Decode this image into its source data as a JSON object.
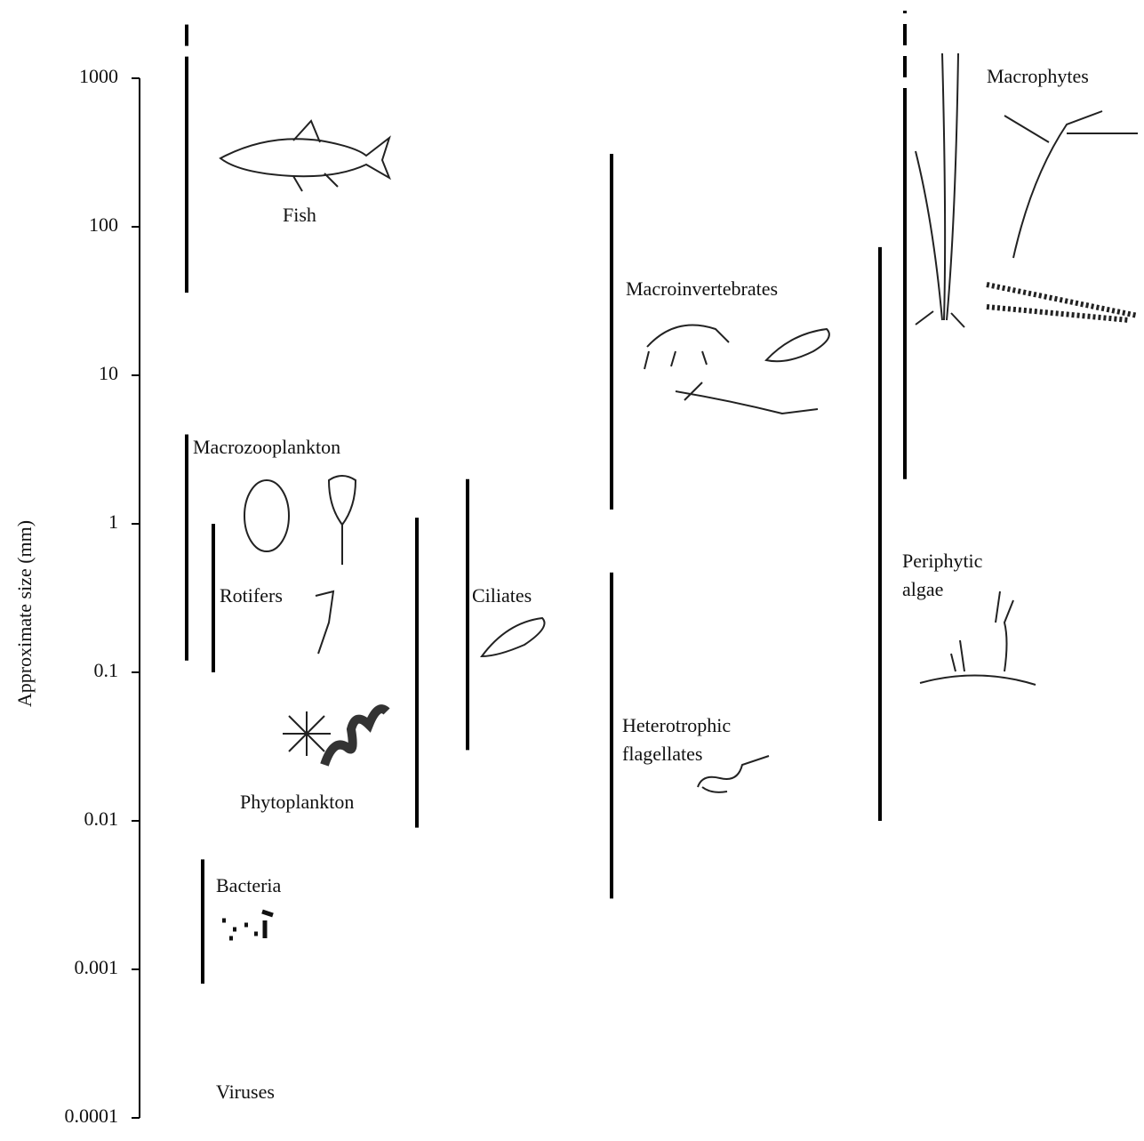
{
  "chart_data": {
    "type": "range",
    "y_label": "Approximate size (mm)",
    "log_scale": true,
    "color": "#000000",
    "ylim": [
      0.0001,
      1000
    ],
    "yticks": [
      0.0001,
      0.001,
      0.01,
      0.1,
      1,
      10,
      100,
      1000
    ],
    "groups": [
      {
        "name": "Fish",
        "low": 36,
        "high": 1400,
        "dashed_high": 2300
      },
      {
        "name": "Macrozooplankton",
        "low": 0.12,
        "high": 4
      },
      {
        "name": "Rotifers",
        "low": 0.1,
        "high": 1
      },
      {
        "name": "Phytoplankton",
        "low": 0.009,
        "high": 1.1
      },
      {
        "name": "Ciliates",
        "low": 0.03,
        "high": 2
      },
      {
        "name": "Bacteria",
        "low": 0.0008,
        "high": 0.0055
      },
      {
        "name": "Macroinvertebrates",
        "low": 1.25,
        "high": 310
      },
      {
        "name": "Heterotrophic flagellates",
        "low": 0.003,
        "high": 0.47
      },
      {
        "name": "Periphytic algae",
        "low": 0.01,
        "high": 73
      },
      {
        "name": "Macrophytes",
        "low": 2,
        "high": 860,
        "dashed_high": 2850
      },
      {
        "name": "Viruses"
      }
    ]
  }
}
